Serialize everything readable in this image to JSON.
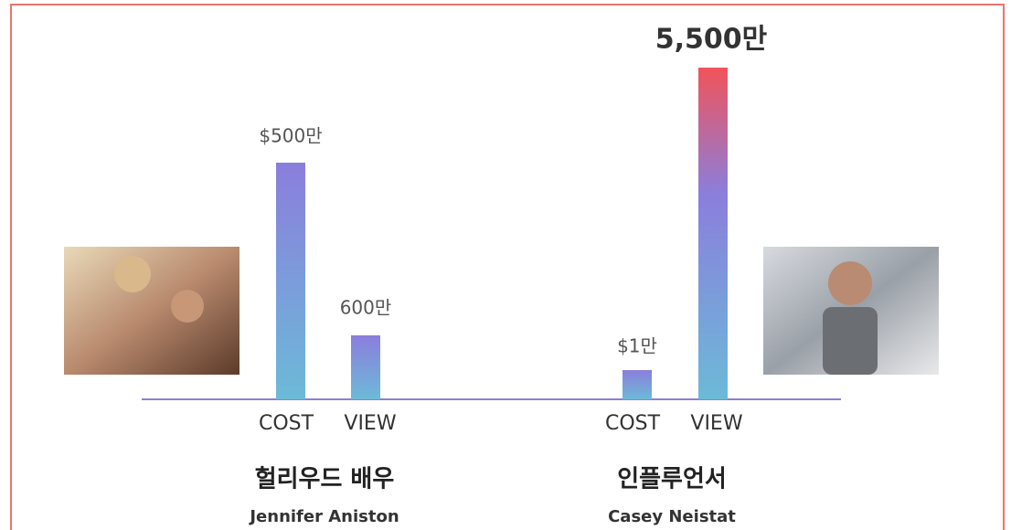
{
  "groups": [
    {
      "title": "헐리우드 배우",
      "subtitle": "Jennifer Aniston",
      "bars": [
        {
          "label": "COST",
          "value_label": "$500만"
        },
        {
          "label": "VIEW",
          "value_label": "600만"
        }
      ]
    },
    {
      "title": "인플루언서",
      "subtitle": "Casey Neistat",
      "bars": [
        {
          "label": "COST",
          "value_label": "$1만"
        },
        {
          "label": "VIEW",
          "value_label": "5,500만"
        }
      ]
    }
  ]
}
